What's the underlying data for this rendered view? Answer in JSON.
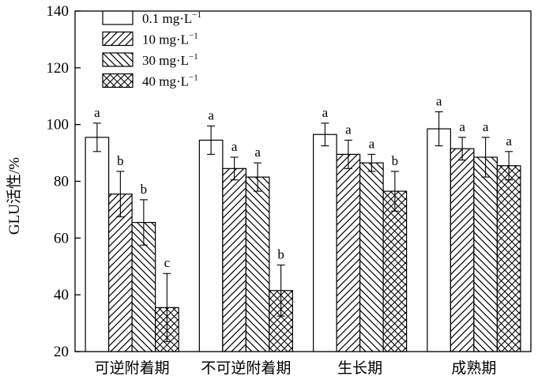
{
  "chart_data": {
    "type": "bar",
    "title": "",
    "xlabel": "",
    "ylabel": "GLU活性/%",
    "ylim": [
      20,
      140
    ],
    "yticks": [
      20,
      40,
      60,
      80,
      100,
      120,
      140
    ],
    "categories": [
      "可逆附着期",
      "不可逆附着期",
      "生长期",
      "成熟期"
    ],
    "legend_position": "top-left",
    "series": [
      {
        "name": "0.1 mg·L",
        "name_exponent": "−1",
        "pattern": "empty",
        "values": [
          95.5,
          94.5,
          96.5,
          98.5
        ],
        "errors": [
          5,
          5,
          4,
          6
        ],
        "letters": [
          "a",
          "a",
          "a",
          "a"
        ]
      },
      {
        "name": "10 mg·L",
        "name_exponent": "−1",
        "pattern": "diagonal-right",
        "values": [
          75.5,
          84.5,
          89.5,
          91.5
        ],
        "errors": [
          8,
          4,
          5,
          4
        ],
        "letters": [
          "b",
          "a",
          "a",
          "a"
        ]
      },
      {
        "name": "30 mg·L",
        "name_exponent": "−1",
        "pattern": "diagonal-left",
        "values": [
          65.5,
          81.5,
          86.5,
          88.5
        ],
        "errors": [
          8,
          5,
          3,
          7
        ],
        "letters": [
          "b",
          "a",
          "a",
          "a"
        ]
      },
      {
        "name": "40 mg·L",
        "name_exponent": "−1",
        "pattern": "crosshatch",
        "values": [
          35.5,
          41.5,
          76.5,
          85.5
        ],
        "errors": [
          12,
          9,
          7,
          5
        ],
        "letters": [
          "c",
          "b",
          "b",
          "a"
        ]
      }
    ]
  }
}
